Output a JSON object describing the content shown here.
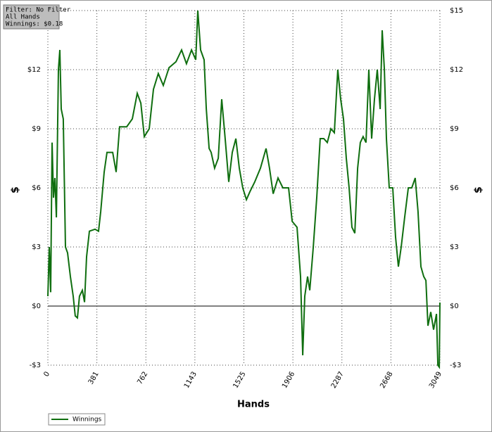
{
  "chart_data": {
    "type": "line",
    "filter_info": [
      "Filter: No Filter",
      "All Hands",
      "Winnings: $0.18"
    ],
    "x_label": "Hands",
    "y_label": "$",
    "xlim": [
      0,
      3049
    ],
    "ylim": [
      -3,
      15
    ],
    "xticks": [
      {
        "value": 0,
        "label": "0"
      },
      {
        "value": 381.125,
        "label": "381"
      },
      {
        "value": 762.25,
        "label": "762"
      },
      {
        "value": 1143.375,
        "label": "1143"
      },
      {
        "value": 1524.5,
        "label": "1525"
      },
      {
        "value": 1905.625,
        "label": "1906"
      },
      {
        "value": 2286.75,
        "label": "2287"
      },
      {
        "value": 2667.875,
        "label": "2668"
      },
      {
        "value": 3049,
        "label": "3049"
      }
    ],
    "yticks": [
      {
        "value": -3,
        "label": "-$3"
      },
      {
        "value": 0,
        "label": "$0"
      },
      {
        "value": 3,
        "label": "$3"
      },
      {
        "value": 6,
        "label": "$6"
      },
      {
        "value": 9,
        "label": "$9"
      },
      {
        "value": 12,
        "label": "$12"
      },
      {
        "value": 15,
        "label": "$15"
      }
    ],
    "grid": true,
    "legend": "bottom-left",
    "series": [
      {
        "name": "Winnings",
        "color": "#0f6e0f",
        "x": [
          0,
          11,
          22,
          33,
          44,
          55,
          66,
          82,
          93,
          104,
          120,
          137,
          153,
          175,
          197,
          213,
          230,
          246,
          268,
          285,
          301,
          323,
          367,
          394,
          411,
          438,
          460,
          504,
          531,
          558,
          613,
          657,
          695,
          723,
          750,
          788,
          821,
          859,
          898,
          942,
          996,
          1040,
          1078,
          1117,
          1150,
          1166,
          1188,
          1215,
          1232,
          1254,
          1270,
          1297,
          1325,
          1352,
          1379,
          1407,
          1434,
          1462,
          1489,
          1516,
          1544,
          1571,
          1609,
          1653,
          1697,
          1724,
          1752,
          1790,
          1828,
          1872,
          1900,
          1938,
          1965,
          1982,
          1998,
          2020,
          2037,
          2064,
          2091,
          2118,
          2146,
          2173,
          2201,
          2228,
          2255,
          2277,
          2299,
          2321,
          2343,
          2365,
          2387,
          2409,
          2430,
          2452,
          2474,
          2496,
          2518,
          2540,
          2562,
          2584,
          2600,
          2617,
          2633,
          2655,
          2682,
          2704,
          2726,
          2748,
          2775,
          2803,
          2830,
          2857,
          2879,
          2901,
          2923,
          2940,
          2956,
          2978,
          3000,
          3022,
          3033,
          3044,
          3049
        ],
        "values": [
          0.5,
          3,
          0.7,
          8.3,
          5.5,
          6.5,
          4.5,
          12,
          13,
          10,
          9.5,
          3,
          2.7,
          1.5,
          0.5,
          -0.5,
          -0.6,
          0.5,
          0.8,
          0.2,
          2.5,
          3.8,
          3.9,
          3.8,
          4.8,
          6.8,
          7.8,
          7.8,
          6.8,
          9.1,
          9.1,
          9.5,
          10.8,
          10.3,
          8.6,
          9,
          11,
          11.8,
          11.2,
          12.1,
          12.4,
          13,
          12.3,
          13,
          12.5,
          15,
          13,
          12.5,
          10,
          8,
          7.8,
          7,
          7.5,
          10.5,
          8.5,
          6.3,
          7.8,
          8.5,
          7,
          6,
          5.4,
          5.8,
          6.3,
          7,
          8,
          7,
          5.7,
          6.5,
          6,
          6,
          4.3,
          4,
          1.5,
          -2.5,
          0.5,
          1.5,
          0.8,
          3,
          5.5,
          8.5,
          8.5,
          8.3,
          9,
          8.8,
          12,
          10.5,
          9.5,
          7.5,
          6,
          4,
          3.7,
          7,
          8.3,
          8.6,
          8.3,
          12,
          8.5,
          10.5,
          12,
          10,
          14,
          12,
          8.5,
          6,
          6,
          3.5,
          2,
          3,
          4.5,
          6,
          6,
          6.5,
          4.8,
          2,
          1.5,
          1.3,
          -1,
          -0.3,
          -1.2,
          -0.4,
          -3,
          -3.1,
          0.18
        ]
      }
    ]
  }
}
